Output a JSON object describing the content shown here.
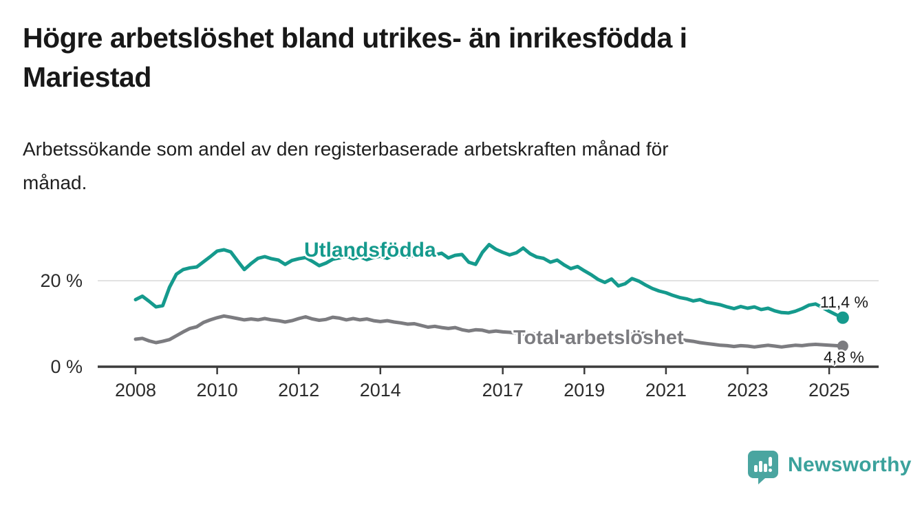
{
  "title": {
    "lines": [
      "Högre arbetslöshet bland utrikes- än inrikesfödda i",
      "Mariestad"
    ]
  },
  "subtitle": {
    "lines": [
      "Arbetssökande som andel av den registerbaserade arbetskraften månad för",
      "månad."
    ]
  },
  "chart_data": {
    "type": "line",
    "title": "Högre arbetslöshet bland utrikes- än inrikesfödda i Mariestad",
    "xlabel": "",
    "ylabel": "Arbetssökande som andel av den registerbaserade arbetskraften",
    "x_unit": "decimal_year",
    "xlim": [
      2007.4,
      2025.8
    ],
    "ylim": [
      0,
      29
    ],
    "grid": "horizontal-20-only",
    "x_ticks": [
      {
        "value": 2008,
        "label": "2008"
      },
      {
        "value": 2010,
        "label": "2010"
      },
      {
        "value": 2012,
        "label": "2012"
      },
      {
        "value": 2014,
        "label": "2014"
      },
      {
        "value": 2017,
        "label": "2017"
      },
      {
        "value": 2019,
        "label": "2019"
      },
      {
        "value": 2021,
        "label": "2021"
      },
      {
        "value": 2023,
        "label": "2023"
      },
      {
        "value": 2025,
        "label": "2025"
      }
    ],
    "y_ticks": [
      {
        "value": 0,
        "label": "0 %"
      },
      {
        "value": 20,
        "label": "20 %"
      }
    ],
    "series": [
      {
        "id": "utlandsfodda",
        "name": "Utlandsfödda",
        "color": "#159a8d",
        "end_label": "11,4 %",
        "end_value": 11.4,
        "x_start": 2008.0,
        "x_step_years": 0.166667,
        "values": [
          15.6,
          16.4,
          15.2,
          13.9,
          14.2,
          18.5,
          21.5,
          22.6,
          23.0,
          23.2,
          24.4,
          25.6,
          26.9,
          27.2,
          26.7,
          24.6,
          22.6,
          24.0,
          25.2,
          25.6,
          25.1,
          24.8,
          23.8,
          24.7,
          25.1,
          25.4,
          24.5,
          23.5,
          24.1,
          25.0,
          25.3,
          25.8,
          25.1,
          25.6,
          24.9,
          25.4,
          25.7,
          25.2,
          25.9,
          26.1,
          25.5,
          25.9,
          26.2,
          25.6,
          26.0,
          26.4,
          25.3,
          25.9,
          26.1,
          24.3,
          23.8,
          26.6,
          28.4,
          27.3,
          26.6,
          26.0,
          26.5,
          27.6,
          26.3,
          25.5,
          25.2,
          24.3,
          24.8,
          23.7,
          22.8,
          23.3,
          22.3,
          21.4,
          20.3,
          19.6,
          20.4,
          18.8,
          19.3,
          20.5,
          19.9,
          19.0,
          18.2,
          17.6,
          17.2,
          16.6,
          16.1,
          15.8,
          15.3,
          15.6,
          15.0,
          14.7,
          14.4,
          13.9,
          13.5,
          14.0,
          13.6,
          13.9,
          13.3,
          13.6,
          13.0,
          12.6,
          12.5,
          12.9,
          13.5,
          14.3,
          14.6,
          13.8,
          12.9,
          12.1,
          11.4
        ]
      },
      {
        "id": "total",
        "name": "Total arbetslöshet",
        "color": "#7c7c80",
        "end_label": "4,8 %",
        "end_value": 4.8,
        "x_start": 2008.0,
        "x_step_years": 0.166667,
        "values": [
          6.4,
          6.6,
          6.0,
          5.6,
          5.9,
          6.3,
          7.2,
          8.1,
          8.9,
          9.3,
          10.3,
          10.9,
          11.4,
          11.8,
          11.5,
          11.2,
          10.9,
          11.1,
          10.9,
          11.2,
          10.9,
          10.7,
          10.4,
          10.7,
          11.2,
          11.6,
          11.1,
          10.8,
          11.0,
          11.5,
          11.3,
          10.9,
          11.2,
          10.9,
          11.1,
          10.7,
          10.5,
          10.7,
          10.4,
          10.2,
          9.9,
          10.0,
          9.6,
          9.2,
          9.4,
          9.1,
          8.9,
          9.1,
          8.6,
          8.3,
          8.6,
          8.5,
          8.1,
          8.3,
          8.1,
          8.0,
          7.8,
          7.6,
          7.8,
          7.5,
          7.3,
          7.5,
          7.2,
          7.0,
          7.2,
          6.9,
          7.0,
          6.8,
          7.0,
          6.7,
          6.6,
          6.8,
          7.0,
          7.6,
          7.9,
          7.7,
          7.4,
          7.2,
          7.0,
          6.7,
          6.4,
          6.1,
          5.9,
          5.6,
          5.4,
          5.2,
          5.0,
          4.9,
          4.7,
          4.9,
          4.8,
          4.6,
          4.8,
          5.0,
          4.8,
          4.6,
          4.8,
          5.0,
          4.9,
          5.1,
          5.2,
          5.1,
          5.0,
          4.9,
          4.8
        ]
      }
    ],
    "legend_position": "labels-on-lines"
  },
  "colors": {
    "grid_line": "#d8d8d8",
    "axis_line": "#3b3b3b",
    "series_foreign_born": "#159a8d",
    "series_total": "#7c7c80",
    "text_dark": "#181818"
  },
  "branding": {
    "logo_text": "Newsworthy",
    "logo_text_color": "#3ba29c",
    "logo_mark_color": "#4aa5a0",
    "logo_mark_icon": "speech-bubble-bar-chart-exclamation"
  }
}
